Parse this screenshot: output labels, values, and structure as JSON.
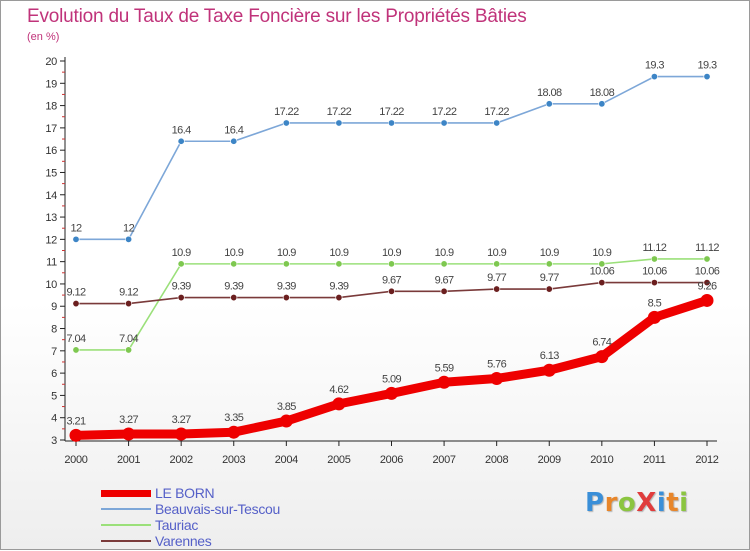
{
  "title": "Evolution du Taux de Taxe Foncière sur les Propriétés Bâties",
  "unit_label": "(en %)",
  "logo": {
    "text": "ProXiti",
    "letter_colors": [
      "#3a8fd8",
      "#e8862a",
      "#8bc540",
      "#e03c3c",
      "#3a8fd8",
      "#e8862a",
      "#8bc540"
    ]
  },
  "chart_data": {
    "type": "line",
    "title": "Evolution du Taux de Taxe Foncière sur les Propriétés Bâties",
    "ylabel": "(en %)",
    "xlabel": "",
    "ylim": [
      3,
      20
    ],
    "yticks": [
      3,
      4,
      5,
      6,
      7,
      8,
      9,
      10,
      11,
      12,
      13,
      14,
      15,
      16,
      17,
      18,
      19,
      20
    ],
    "x": [
      "2000",
      "2001",
      "2002",
      "2003",
      "2004",
      "2005",
      "2006",
      "2007",
      "2008",
      "2009",
      "2010",
      "2011",
      "2012"
    ],
    "grid": false,
    "legend_position": "bottom-left",
    "series": [
      {
        "name": "LE BORN",
        "color": "#ee0000",
        "marker_color": "#ee0000",
        "values": [
          3.21,
          3.27,
          3.27,
          3.35,
          3.85,
          4.62,
          5.09,
          5.59,
          5.76,
          6.13,
          6.74,
          8.5,
          9.26
        ],
        "labels": [
          "3.21",
          "3.27",
          "3.27",
          "3.35",
          "3.85",
          "4.62",
          "5.09",
          "5.59",
          "5.76",
          "6.13",
          "6.74",
          "8.5",
          "9.26"
        ]
      },
      {
        "name": "Beauvais-sur-Tescou",
        "color": "#7da7d8",
        "marker_color": "#3d85c6",
        "values": [
          12,
          12,
          16.4,
          16.4,
          17.22,
          17.22,
          17.22,
          17.22,
          17.22,
          18.08,
          18.08,
          19.3,
          19.3
        ],
        "labels": [
          "12",
          "12",
          "16.4",
          "16.4",
          "17.22",
          "17.22",
          "17.22",
          "17.22",
          "17.22",
          "18.08",
          "18.08",
          "19.3",
          "19.3"
        ]
      },
      {
        "name": "Tauriac",
        "color": "#9be07a",
        "marker_color": "#7ec850",
        "values": [
          7.04,
          7.04,
          10.9,
          10.9,
          10.9,
          10.9,
          10.9,
          10.9,
          10.9,
          10.9,
          10.9,
          11.12,
          11.12
        ],
        "labels": [
          "7.04",
          "7.04",
          "10.9",
          "10.9",
          "10.9",
          "10.9",
          "10.9",
          "10.9",
          "10.9",
          "10.9",
          "10.9",
          "11.12",
          "11.12"
        ]
      },
      {
        "name": "Varennes",
        "color": "#7a3a3a",
        "marker_color": "#6b1f1f",
        "values": [
          9.12,
          9.12,
          9.39,
          9.39,
          9.39,
          9.39,
          9.67,
          9.67,
          9.77,
          9.77,
          10.06,
          10.06,
          10.06
        ],
        "labels": [
          "9.12",
          "9.12",
          "9.39",
          "9.39",
          "9.39",
          "9.39",
          "9.67",
          "9.67",
          "9.77",
          "9.77",
          "10.06",
          "10.06",
          "10.06"
        ]
      }
    ]
  }
}
